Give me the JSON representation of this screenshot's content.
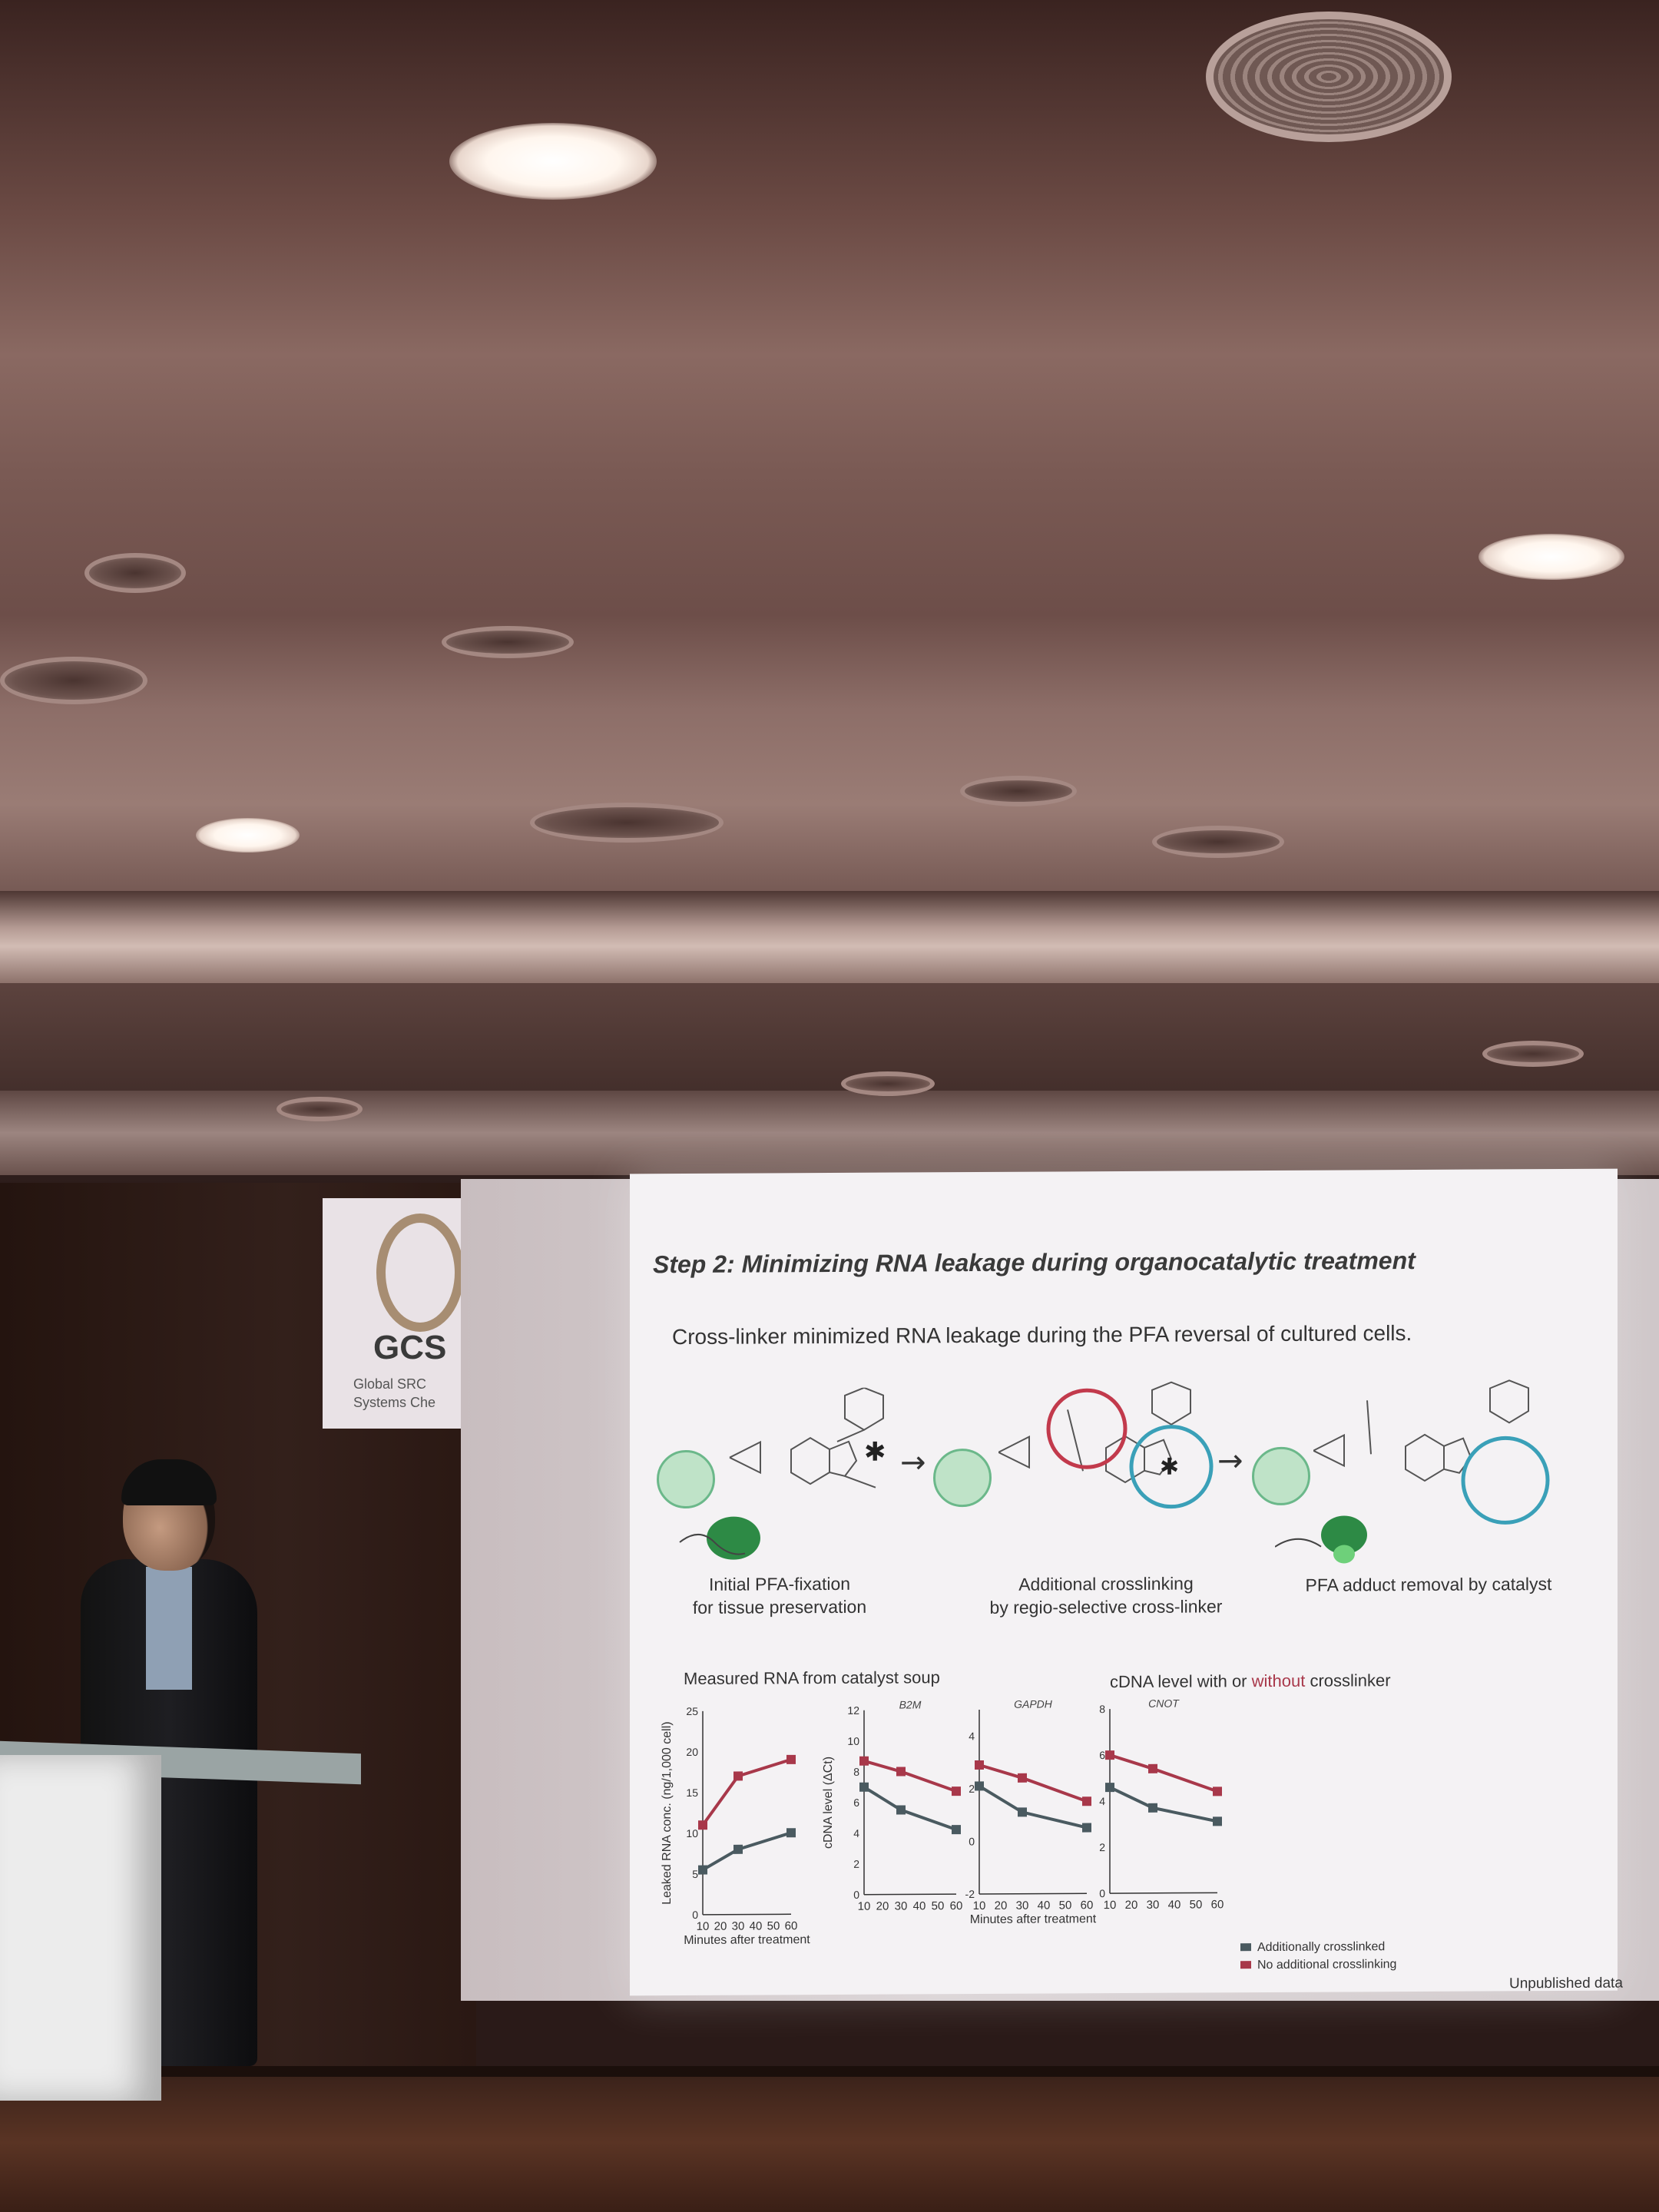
{
  "slide": {
    "title": "Step 2: Minimizing RNA leakage during organocatalytic treatment",
    "subtitle": "Cross-linker minimized RNA leakage during the PFA reversal of cultured cells.",
    "steps": [
      {
        "line1": "Initial PFA-fixation",
        "line2": "for tissue preservation"
      },
      {
        "line1": "Additional crosslinking",
        "line2": "by regio-selective cross-linker"
      },
      {
        "line1": "PFA adduct removal by catalyst",
        "line2": ""
      }
    ],
    "left_chart_title": "Measured RNA from catalyst soup",
    "right_chart_title_a": "cDNA level with or ",
    "right_chart_title_b": "without",
    "right_chart_title_c": " crosslinker",
    "footer": "Unpublished data"
  },
  "banner": {
    "title": "GCS",
    "sub1": "Global SRC",
    "sub2": "Systems Che"
  },
  "colors": {
    "crosslinked": "#4a5a60",
    "no_crosslink": "#a8384a",
    "teal": "#3aa0b8",
    "red_circle": "#c23a4c"
  },
  "chart_data": [
    {
      "type": "line",
      "title": "Measured RNA from catalyst soup",
      "xlabel": "Minutes after treatment",
      "ylabel": "Leaked RNA conc. (ng/1,000 cell)",
      "x": [
        10,
        30,
        60
      ],
      "xticks": [
        "10",
        "20",
        "30",
        "40",
        "50",
        "60"
      ],
      "yticks": [
        "0",
        "5",
        "10",
        "15",
        "20",
        "25"
      ],
      "ylim": [
        0,
        25
      ],
      "series": [
        {
          "values": [
            11,
            17,
            19
          ]
        },
        {
          "values": [
            5.5,
            8,
            10
          ]
        }
      ]
    },
    {
      "type": "line",
      "title": "B2M",
      "ylabel": "cDNA level (ΔCt)",
      "x": [
        10,
        30,
        60
      ],
      "xticks": [
        "10",
        "20",
        "30",
        "40",
        "50",
        "60"
      ],
      "yticks": [
        "0",
        "2",
        "4",
        "6",
        "8",
        "10",
        "12"
      ],
      "ylim": [
        0,
        12
      ],
      "series": [
        {
          "values": [
            8.7,
            8.0,
            6.7
          ]
        },
        {
          "values": [
            7.0,
            5.5,
            4.2
          ]
        }
      ]
    },
    {
      "type": "line",
      "title": "GAPDH",
      "xlabel": "Minutes after treatment",
      "x": [
        10,
        30,
        60
      ],
      "xticks": [
        "10",
        "20",
        "30",
        "40",
        "50",
        "60"
      ],
      "yticks": [
        "-2",
        "0",
        "2",
        "4"
      ],
      "ylim": [
        -2,
        5
      ],
      "series": [
        {
          "values": [
            2.9,
            2.4,
            1.5
          ]
        },
        {
          "values": [
            2.1,
            1.1,
            0.5
          ]
        }
      ]
    },
    {
      "type": "line",
      "title": "CNOT",
      "x": [
        10,
        30,
        60
      ],
      "xticks": [
        "10",
        "20",
        "30",
        "40",
        "50",
        "60"
      ],
      "yticks": [
        "0",
        "2",
        "4",
        "6",
        "8"
      ],
      "ylim": [
        0,
        8
      ],
      "legend": [
        "Additionally crosslinked",
        "No additional crosslinking"
      ],
      "series": [
        {
          "name": "Additionally crosslinked",
          "values": [
            6.0,
            5.4,
            4.4
          ]
        },
        {
          "name": "No additional crosslinking",
          "values": [
            4.6,
            3.7,
            3.1
          ]
        }
      ]
    }
  ]
}
